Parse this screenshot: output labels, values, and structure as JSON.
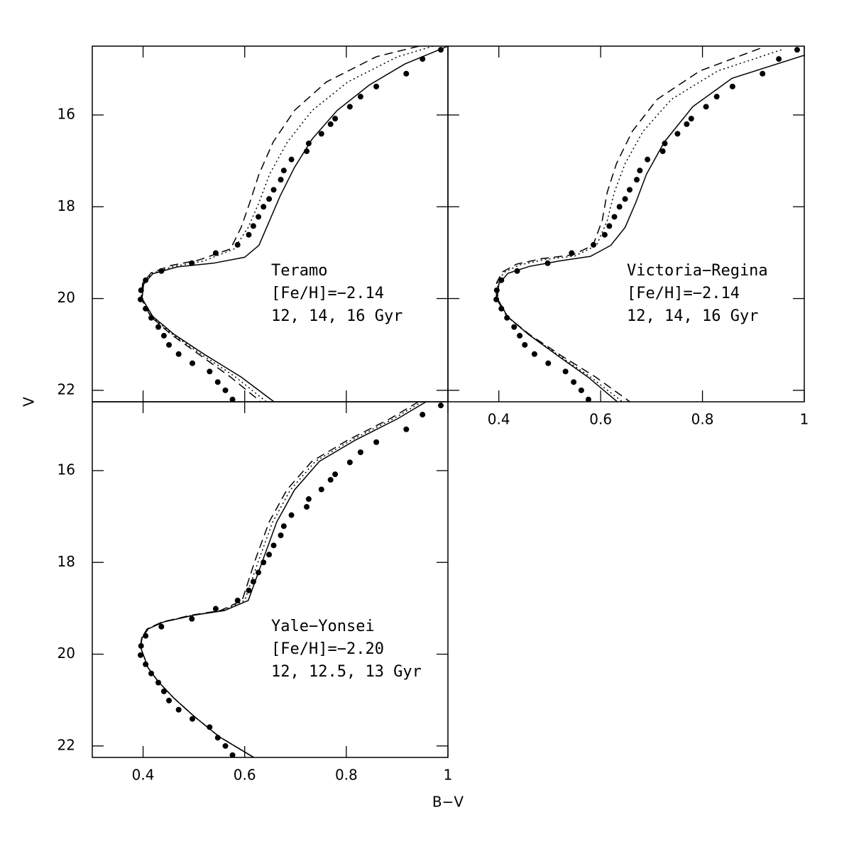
{
  "chart_data": [
    {
      "type": "scatter",
      "ylabel": "V",
      "annotation": [
        "Teramo",
        "[Fe/H]=−2.14",
        "12, 14, 16 Gyr"
      ],
      "xlim": [
        0.3,
        1
      ],
      "ylim": [
        22.25,
        14.5
      ],
      "xticks": [
        0.4,
        0.6,
        0.8,
        1
      ],
      "yticks": [
        16,
        18,
        20,
        22
      ],
      "series": [
        {
          "style": "points",
          "color": "#000",
          "x": [
            0.986,
            0.95,
            0.918,
            0.859,
            0.828,
            0.807,
            0.778,
            0.769,
            0.751,
            0.726,
            0.722,
            0.692,
            0.677,
            0.671,
            0.657,
            0.648,
            0.637,
            0.627,
            0.617,
            0.608,
            0.586,
            0.543,
            0.496,
            0.436,
            0.405,
            0.396,
            0.395,
            0.405,
            0.416,
            0.43,
            0.441,
            0.451,
            0.47,
            0.497,
            0.531,
            0.547,
            0.562,
            0.576
          ],
          "values": [
            14.58,
            14.78,
            15.1,
            15.38,
            15.6,
            15.82,
            16.08,
            16.2,
            16.41,
            16.62,
            16.79,
            16.97,
            17.21,
            17.41,
            17.63,
            17.83,
            18.0,
            18.22,
            18.42,
            18.61,
            18.83,
            19.01,
            19.23,
            19.4,
            19.6,
            19.82,
            20.02,
            20.22,
            20.42,
            20.62,
            20.81,
            21.01,
            21.21,
            21.41,
            21.59,
            21.82,
            22.0,
            22.2
          ]
        },
        {
          "style": "solid",
          "color": "#000",
          "x": [
            1.0,
            0.915,
            0.845,
            0.782,
            0.733,
            0.698,
            0.67,
            0.649,
            0.628,
            0.6,
            0.538,
            0.468,
            0.419,
            0.401,
            0.398,
            0.419,
            0.461,
            0.524,
            0.593,
            0.66
          ],
          "values": [
            14.5,
            14.89,
            15.35,
            15.9,
            16.52,
            17.14,
            17.76,
            18.3,
            18.84,
            19.1,
            19.23,
            19.31,
            19.46,
            19.69,
            20.0,
            20.39,
            20.78,
            21.24,
            21.71,
            22.27
          ]
        },
        {
          "style": "dotted",
          "color": "#000",
          "x": [
            0.971,
            0.901,
            0.803,
            0.733,
            0.684,
            0.649,
            0.628,
            0.607,
            0.579,
            0.52,
            0.46,
            0.418,
            0.4,
            0.397,
            0.417,
            0.458,
            0.518,
            0.582,
            0.645
          ],
          "values": [
            14.5,
            14.73,
            15.28,
            15.9,
            16.59,
            17.29,
            17.91,
            18.45,
            18.92,
            19.18,
            19.3,
            19.45,
            19.68,
            20.0,
            20.39,
            20.78,
            21.24,
            21.71,
            22.27
          ]
        },
        {
          "style": "dashed",
          "color": "#000",
          "x": [
            0.943,
            0.859,
            0.761,
            0.698,
            0.656,
            0.628,
            0.61,
            0.593,
            0.572,
            0.51,
            0.455,
            0.416,
            0.399,
            0.396,
            0.415,
            0.455,
            0.513,
            0.572,
            0.634
          ],
          "values": [
            14.5,
            14.73,
            15.28,
            15.9,
            16.59,
            17.29,
            17.91,
            18.45,
            18.92,
            19.16,
            19.28,
            19.44,
            19.67,
            20.0,
            20.39,
            20.78,
            21.24,
            21.71,
            22.27
          ]
        }
      ]
    },
    {
      "type": "scatter",
      "annotation": [
        "Victoria−Regina",
        "[Fe/H]=−2.14",
        "12, 14, 16 Gyr"
      ],
      "xlim": [
        0.3,
        1
      ],
      "ylim": [
        22.25,
        14.5
      ],
      "xticks": [
        0.4,
        0.6,
        0.8,
        1
      ],
      "yticks": [
        16,
        18,
        20,
        22
      ],
      "series": [
        {
          "style": "points",
          "color": "#000",
          "x": [
            0.986,
            0.95,
            0.918,
            0.859,
            0.828,
            0.807,
            0.778,
            0.769,
            0.751,
            0.726,
            0.722,
            0.692,
            0.677,
            0.671,
            0.657,
            0.648,
            0.637,
            0.627,
            0.617,
            0.608,
            0.586,
            0.543,
            0.496,
            0.436,
            0.405,
            0.396,
            0.395,
            0.405,
            0.416,
            0.43,
            0.441,
            0.451,
            0.47,
            0.497,
            0.531,
            0.547,
            0.562,
            0.576
          ],
          "values": [
            14.58,
            14.78,
            15.1,
            15.38,
            15.6,
            15.82,
            16.08,
            16.2,
            16.41,
            16.62,
            16.79,
            16.97,
            17.21,
            17.41,
            17.63,
            17.83,
            18.0,
            18.22,
            18.42,
            18.61,
            18.83,
            19.01,
            19.23,
            19.4,
            19.6,
            19.82,
            20.02,
            20.22,
            20.42,
            20.62,
            20.81,
            21.01,
            21.21,
            21.41,
            21.59,
            21.82,
            22.0,
            22.2
          ]
        },
        {
          "style": "solid",
          "color": "#000",
          "x": [
            1.0,
            0.858,
            0.781,
            0.725,
            0.69,
            0.669,
            0.648,
            0.62,
            0.58,
            0.52,
            0.46,
            0.418,
            0.4,
            0.397,
            0.417,
            0.458,
            0.515,
            0.575,
            0.635
          ],
          "values": [
            14.7,
            15.2,
            15.82,
            16.59,
            17.29,
            17.91,
            18.45,
            18.84,
            19.08,
            19.18,
            19.3,
            19.45,
            19.68,
            20.0,
            20.39,
            20.78,
            21.24,
            21.71,
            22.27
          ]
        },
        {
          "style": "dotted",
          "color": "#000",
          "x": [
            0.955,
            0.83,
            0.739,
            0.683,
            0.648,
            0.627,
            0.613,
            0.592,
            0.55,
            0.49,
            0.44,
            0.41,
            0.398,
            0.396,
            0.416,
            0.458,
            0.518,
            0.58,
            0.645
          ],
          "values": [
            14.58,
            15.04,
            15.66,
            16.36,
            17.06,
            17.68,
            18.3,
            18.84,
            19.07,
            19.15,
            19.27,
            19.43,
            19.66,
            20.0,
            20.39,
            20.78,
            21.24,
            21.71,
            22.27
          ]
        },
        {
          "style": "dashed",
          "color": "#000",
          "x": [
            0.913,
            0.795,
            0.711,
            0.662,
            0.631,
            0.613,
            0.603,
            0.585,
            0.545,
            0.485,
            0.435,
            0.407,
            0.396,
            0.395,
            0.416,
            0.46,
            0.522,
            0.59,
            0.66
          ],
          "values": [
            14.55,
            15.04,
            15.66,
            16.36,
            17.06,
            17.68,
            18.3,
            18.84,
            19.05,
            19.13,
            19.25,
            19.42,
            19.65,
            20.0,
            20.39,
            20.78,
            21.24,
            21.71,
            22.27
          ]
        }
      ]
    },
    {
      "type": "scatter",
      "xlabel": "B−V",
      "annotation": [
        "Yale−Yonsei",
        "[Fe/H]=−2.20",
        "12, 12.5, 13 Gyr"
      ],
      "xlim": [
        0.3,
        1
      ],
      "ylim": [
        22.25,
        14.5
      ],
      "xticks": [
        0.4,
        0.6,
        0.8,
        1
      ],
      "yticks": [
        16,
        18,
        20,
        22
      ],
      "series": [
        {
          "style": "points",
          "color": "#000",
          "x": [
            0.986,
            0.95,
            0.918,
            0.859,
            0.828,
            0.807,
            0.778,
            0.769,
            0.751,
            0.726,
            0.722,
            0.692,
            0.677,
            0.671,
            0.657,
            0.648,
            0.637,
            0.627,
            0.617,
            0.608,
            0.586,
            0.543,
            0.496,
            0.436,
            0.405,
            0.396,
            0.395,
            0.405,
            0.416,
            0.43,
            0.441,
            0.451,
            0.47,
            0.497,
            0.531,
            0.547,
            0.562,
            0.576
          ],
          "values": [
            14.58,
            14.78,
            15.1,
            15.38,
            15.6,
            15.82,
            16.08,
            16.2,
            16.41,
            16.62,
            16.79,
            16.97,
            17.21,
            17.41,
            17.63,
            17.83,
            18.0,
            18.22,
            18.42,
            18.61,
            18.83,
            19.01,
            19.23,
            19.4,
            19.6,
            19.82,
            20.02,
            20.22,
            20.42,
            20.62,
            20.81,
            21.01,
            21.21,
            21.41,
            21.59,
            21.82,
            22.0,
            22.2
          ]
        },
        {
          "style": "solid",
          "color": "#000",
          "x": [
            0.957,
            0.901,
            0.817,
            0.747,
            0.698,
            0.663,
            0.635,
            0.607,
            0.56,
            0.5,
            0.44,
            0.41,
            0.398,
            0.395,
            0.41,
            0.43,
            0.46,
            0.5,
            0.55,
            0.621
          ],
          "values": [
            14.5,
            14.87,
            15.34,
            15.8,
            16.42,
            17.12,
            17.97,
            18.83,
            19.05,
            19.15,
            19.3,
            19.45,
            19.65,
            19.85,
            20.3,
            20.6,
            20.95,
            21.35,
            21.8,
            22.27
          ]
        },
        {
          "style": "dotted",
          "color": "#000",
          "x": [
            0.949,
            0.893,
            0.809,
            0.739,
            0.69,
            0.655,
            0.627,
            0.6,
            0.555,
            0.497,
            0.438,
            0.409,
            0.397,
            0.395,
            0.41,
            0.43,
            0.46,
            0.5,
            0.55,
            0.621
          ],
          "values": [
            14.5,
            14.87,
            15.34,
            15.8,
            16.42,
            17.12,
            17.97,
            18.83,
            19.05,
            19.15,
            19.3,
            19.45,
            19.65,
            19.85,
            20.3,
            20.6,
            20.95,
            21.35,
            21.8,
            22.27
          ]
        },
        {
          "style": "dashed",
          "color": "#000",
          "x": [
            0.942,
            0.886,
            0.802,
            0.732,
            0.683,
            0.648,
            0.62,
            0.595,
            0.552,
            0.495,
            0.437,
            0.408,
            0.397,
            0.395,
            0.41,
            0.43,
            0.46,
            0.5,
            0.55,
            0.621
          ],
          "values": [
            14.5,
            14.87,
            15.34,
            15.8,
            16.42,
            17.12,
            17.97,
            18.83,
            19.05,
            19.15,
            19.3,
            19.45,
            19.65,
            19.85,
            20.3,
            20.6,
            20.95,
            21.35,
            21.8,
            22.27
          ]
        }
      ]
    }
  ]
}
